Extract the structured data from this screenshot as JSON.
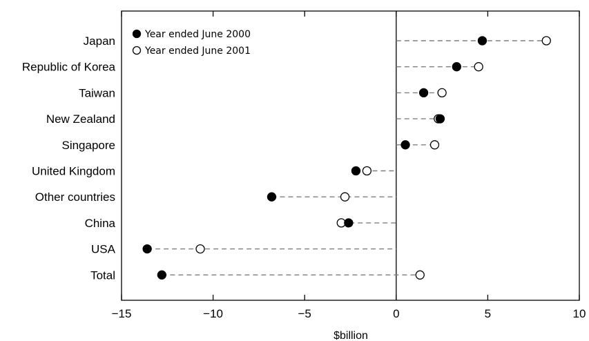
{
  "chart_data": {
    "type": "scatter",
    "subtype": "dot-plot",
    "xlabel": "$billion",
    "xlim": [
      -15,
      10
    ],
    "xticks": [
      -15,
      -10,
      -5,
      0,
      5,
      10
    ],
    "xtick_labels": [
      "−15",
      "−10",
      "−5",
      "0",
      "5",
      "10"
    ],
    "grid": false,
    "legend_position": "top-left",
    "categories": [
      "Japan",
      "Republic of Korea",
      "Taiwan",
      "New Zealand",
      "Singapore",
      "United Kingdom",
      "Other countries",
      "China",
      "USA",
      "Total"
    ],
    "series": [
      {
        "name": "Year ended June 2000",
        "marker": "filled-circle",
        "color": "#000000",
        "values": [
          4.7,
          3.3,
          1.5,
          2.4,
          0.5,
          -2.2,
          -6.8,
          -2.6,
          -13.6,
          -12.8
        ]
      },
      {
        "name": "Year ended June 2001",
        "marker": "open-circle",
        "color": "#000000",
        "values": [
          8.2,
          4.5,
          2.5,
          2.3,
          2.1,
          -1.6,
          -2.8,
          -3.0,
          -10.7,
          1.3
        ]
      }
    ],
    "connector_color": "#7f7f7f"
  }
}
